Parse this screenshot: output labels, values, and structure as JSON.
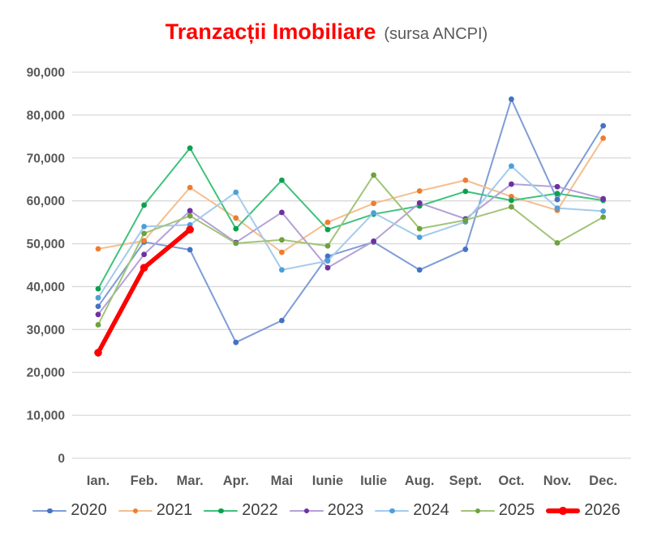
{
  "title": {
    "main": "Tranzacții Imobiliare",
    "subtitle": "(sursa ANCPI)",
    "main_color": "#FF0000",
    "subtitle_color": "#595959"
  },
  "axis": {
    "label_color": "#595959",
    "gridline_color": "#D9D9D9"
  },
  "legend": {
    "position": "bottom",
    "text_color": "#404040"
  },
  "chart_data": {
    "type": "line",
    "title": "Tranzacții Imobiliare (sursa ANCPI)",
    "xlabel": "",
    "ylabel": "",
    "ylim": [
      0,
      90000
    ],
    "ytick_step": 10000,
    "grid": true,
    "legend_position": "bottom",
    "categories": [
      "Ian.",
      "Feb.",
      "Mar.",
      "Apr.",
      "Mai",
      "Iunie",
      "Iulie",
      "Aug.",
      "Sept.",
      "Oct.",
      "Nov.",
      "Dec."
    ],
    "series": [
      {
        "name": "2020",
        "line_color": "#7E9CD8",
        "marker_color": "#4472C4",
        "thick": false,
        "values": [
          35400,
          50400,
          48600,
          27000,
          32100,
          47100,
          50400,
          43900,
          48700,
          83700,
          60300,
          77500
        ]
      },
      {
        "name": "2021",
        "line_color": "#F5BE8E",
        "marker_color": "#ED7D31",
        "thick": false,
        "values": [
          48800,
          50700,
          63100,
          56000,
          48000,
          55000,
          59400,
          62300,
          64800,
          61000,
          57800,
          74600
        ]
      },
      {
        "name": "2022",
        "line_color": "#3FC27D",
        "marker_color": "#0BA14E",
        "thick": false,
        "values": [
          39500,
          59000,
          72300,
          53500,
          64800,
          53300,
          56900,
          58800,
          62200,
          60100,
          61700,
          60100
        ]
      },
      {
        "name": "2023",
        "line_color": "#B5A1D6",
        "marker_color": "#7030A0",
        "thick": false,
        "values": [
          33500,
          47500,
          57700,
          50300,
          57300,
          44400,
          50600,
          59500,
          55800,
          63900,
          63300,
          60500
        ]
      },
      {
        "name": "2024",
        "line_color": "#A3CBEC",
        "marker_color": "#4D9FDB",
        "thick": false,
        "values": [
          37400,
          54000,
          54400,
          62000,
          43900,
          46000,
          57200,
          51500,
          55100,
          68100,
          58300,
          57600
        ]
      },
      {
        "name": "2025",
        "line_color": "#A2C479",
        "marker_color": "#6DA23C",
        "thick": false,
        "values": [
          31100,
          52400,
          56500,
          50100,
          50900,
          49500,
          66000,
          53500,
          55500,
          58600,
          50200,
          56200
        ]
      },
      {
        "name": "2026",
        "line_color": "#FF0000",
        "marker_color": "#FF0000",
        "thick": true,
        "values": [
          24600,
          44400,
          53300,
          null,
          null,
          null,
          null,
          null,
          null,
          null,
          null,
          null
        ]
      }
    ]
  }
}
